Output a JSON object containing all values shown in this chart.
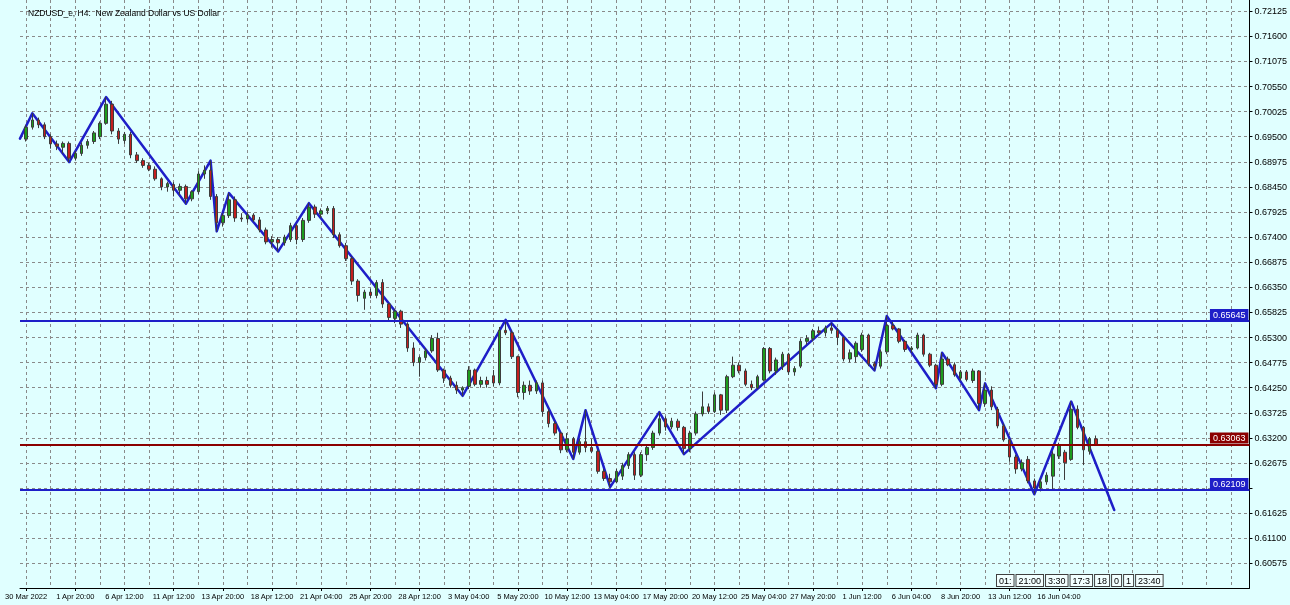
{
  "chart_data": {
    "type": "candlestick",
    "title": "NZDUSD_e, H4:  New Zealand Dollar vs US Dollar",
    "categories": [
      null,
      "30 Mar 2022",
      null,
      null,
      null,
      null,
      null,
      null,
      null,
      "1 Apr 20:00",
      null,
      null,
      null,
      null,
      null,
      null,
      null,
      "6 Apr 12:00",
      null,
      null,
      null,
      null,
      null,
      null,
      null,
      "11 Apr 12:00",
      null,
      null,
      null,
      null,
      null,
      null,
      null,
      "13 Apr 20:00",
      null,
      null,
      null,
      null,
      null,
      null,
      null,
      "18 Apr 12:00",
      null,
      null,
      null,
      null,
      null,
      null,
      null,
      "21 Apr 04:00",
      null,
      null,
      null,
      null,
      null,
      null,
      null,
      "25 Apr 20:00",
      null,
      null,
      null,
      null,
      null,
      null,
      null,
      "28 Apr 12:00",
      null,
      null,
      null,
      null,
      null,
      null,
      null,
      "3 May 04:00",
      null,
      null,
      null,
      null,
      null,
      null,
      null,
      "5 May 20:00",
      null,
      null,
      null,
      null,
      null,
      null,
      null,
      "10 May 12:00",
      null,
      null,
      null,
      null,
      null,
      null,
      null,
      "13 May 04:00",
      null,
      null,
      null,
      null,
      null,
      null,
      null,
      "17 May 20:00",
      null,
      null,
      null,
      null,
      null,
      null,
      null,
      "20 May 12:00",
      null,
      null,
      null,
      null,
      null,
      null,
      null,
      "25 May 04:00",
      null,
      null,
      null,
      null,
      null,
      null,
      null,
      "27 May 20:00",
      null,
      null,
      null,
      null,
      null,
      null,
      null,
      "1 Jun 12:00",
      null,
      null,
      null,
      null,
      null,
      null,
      null,
      "6 Jun 04:00",
      null,
      null,
      null,
      null,
      null,
      null,
      null,
      "8 Jun 20:00",
      null,
      null,
      null,
      null,
      null,
      null,
      null,
      "13 Jun 12:00",
      null,
      null,
      null,
      null,
      null,
      null,
      null,
      "16 Jun 04:00",
      null,
      null,
      null,
      null,
      null,
      null,
      null,
      null,
      null,
      null,
      null,
      null,
      null,
      null,
      null,
      null,
      null,
      null,
      null,
      null,
      null,
      null,
      null,
      null,
      null,
      null,
      null,
      null,
      null,
      null,
      null
    ],
    "ohlc": [
      null,
      [
        0.6945,
        0.6975,
        0.694,
        0.697
      ],
      [
        0.697,
        0.6999,
        0.6965,
        0.6985
      ],
      [
        0.6985,
        0.699,
        0.6968,
        0.6975
      ],
      [
        0.6975,
        0.698,
        0.6945,
        0.695
      ],
      [
        0.695,
        0.6955,
        0.6925,
        0.6935
      ],
      [
        0.6935,
        0.6942,
        0.6922,
        0.693
      ],
      [
        0.6928,
        0.694,
        0.6915,
        0.6936
      ],
      [
        0.6936,
        0.694,
        0.6897,
        0.6905
      ],
      [
        0.6905,
        0.692,
        0.69,
        0.6915
      ],
      [
        0.6915,
        0.6938,
        0.691,
        0.6932
      ],
      [
        0.6932,
        0.6945,
        0.6925,
        0.694
      ],
      [
        0.694,
        0.6962,
        0.6935,
        0.6958
      ],
      [
        0.695,
        0.6982,
        0.6945,
        0.6978
      ],
      [
        0.6978,
        0.7033,
        0.6975,
        0.7018
      ],
      [
        0.7018,
        0.7025,
        0.6955,
        0.6962
      ],
      [
        0.6962,
        0.6968,
        0.6935,
        0.6945
      ],
      [
        0.6942,
        0.696,
        0.6935,
        0.6955
      ],
      [
        0.6955,
        0.696,
        0.6905,
        0.6912
      ],
      [
        0.6912,
        0.6918,
        0.6895,
        0.69
      ],
      [
        0.69,
        0.6905,
        0.6885,
        0.689
      ],
      [
        0.689,
        0.6895,
        0.6878,
        0.6882
      ],
      [
        0.6882,
        0.6888,
        0.6858,
        0.6862
      ],
      [
        0.6862,
        0.6865,
        0.6838,
        0.6845
      ],
      [
        0.6845,
        0.6856,
        0.6835,
        0.6852
      ],
      [
        0.685,
        0.6855,
        0.6825,
        0.6838
      ],
      [
        0.6838,
        0.6852,
        0.6828,
        0.6846
      ],
      [
        0.6846,
        0.685,
        0.681,
        0.682
      ],
      [
        0.682,
        0.6838,
        0.6815,
        0.6835
      ],
      [
        0.6835,
        0.6878,
        0.683,
        0.6872
      ],
      [
        0.6872,
        0.689,
        0.6862,
        0.688
      ],
      [
        0.688,
        0.69,
        0.6818,
        0.6825
      ],
      [
        0.6825,
        0.683,
        0.6752,
        0.677
      ],
      [
        0.677,
        0.679,
        0.6762,
        0.6785
      ],
      [
        0.6785,
        0.6832,
        0.678,
        0.6818
      ],
      [
        0.6818,
        0.6825,
        0.6772,
        0.678
      ],
      [
        0.678,
        0.679,
        0.6772,
        0.6778
      ],
      [
        0.6778,
        0.6792,
        0.677,
        0.6786
      ],
      [
        0.6786,
        0.679,
        0.6772,
        0.6776
      ],
      [
        0.6776,
        0.6782,
        0.675,
        0.6755
      ],
      [
        0.6755,
        0.676,
        0.6725,
        0.673
      ],
      [
        0.673,
        0.6742,
        0.6718,
        0.6735
      ],
      [
        0.6735,
        0.674,
        0.671,
        0.6728
      ],
      [
        0.6728,
        0.6745,
        0.6722,
        0.674
      ],
      [
        0.6735,
        0.677,
        0.673,
        0.6764
      ],
      [
        0.6764,
        0.6768,
        0.6725,
        0.6735
      ],
      [
        0.6735,
        0.678,
        0.673,
        0.6775
      ],
      [
        0.6775,
        0.6811,
        0.677,
        0.6803
      ],
      [
        0.6803,
        0.6808,
        0.678,
        0.6788
      ],
      [
        0.6788,
        0.68,
        0.678,
        0.6795
      ],
      [
        0.6795,
        0.6805,
        0.6788,
        0.68
      ],
      [
        0.68,
        0.6805,
        0.6738,
        0.6745
      ],
      [
        0.6745,
        0.675,
        0.6718,
        0.6722
      ],
      [
        0.6722,
        0.6728,
        0.669,
        0.6695
      ],
      [
        0.6695,
        0.67,
        0.664,
        0.6648
      ],
      [
        0.6648,
        0.6652,
        0.6605,
        0.6618
      ],
      [
        0.6612,
        0.663,
        0.6588,
        0.6625
      ],
      [
        0.6625,
        0.6632,
        0.6612,
        0.6618
      ],
      [
        0.6618,
        0.665,
        0.6612,
        0.6645
      ],
      [
        0.6645,
        0.6652,
        0.6592,
        0.66
      ],
      [
        0.66,
        0.6602,
        0.6565,
        0.6572
      ],
      [
        0.657,
        0.659,
        0.656,
        0.6585
      ],
      [
        0.6585,
        0.6588,
        0.655,
        0.6558
      ],
      [
        0.6558,
        0.6562,
        0.65,
        0.6508
      ],
      [
        0.6508,
        0.652,
        0.647,
        0.6478
      ],
      [
        0.6478,
        0.6492,
        0.6448,
        0.6488
      ],
      [
        0.6488,
        0.6508,
        0.6482,
        0.6502
      ],
      [
        0.6502,
        0.6535,
        0.6498,
        0.6528
      ],
      [
        0.6528,
        0.654,
        0.6458,
        0.6462
      ],
      [
        0.6462,
        0.6465,
        0.6435,
        0.6445
      ],
      [
        0.6445,
        0.645,
        0.6425,
        0.643
      ],
      [
        0.643,
        0.6438,
        0.6412,
        0.642
      ],
      [
        0.642,
        0.6428,
        0.6408,
        0.6425
      ],
      [
        0.6428,
        0.647,
        0.6422,
        0.6462
      ],
      [
        0.6462,
        0.6465,
        0.6428,
        0.6432
      ],
      [
        0.6432,
        0.6448,
        0.6425,
        0.644
      ],
      [
        0.644,
        0.6448,
        0.6425,
        0.6432
      ],
      [
        0.645,
        0.6462,
        0.6428,
        0.6435
      ],
      [
        0.6435,
        0.6552,
        0.643,
        0.6545
      ],
      [
        0.6545,
        0.6567,
        0.6535,
        0.654
      ],
      [
        0.654,
        0.6545,
        0.6485,
        0.649
      ],
      [
        0.649,
        0.6492,
        0.6405,
        0.6415
      ],
      [
        0.6415,
        0.6438,
        0.64,
        0.643
      ],
      [
        0.643,
        0.644,
        0.641,
        0.6418
      ],
      [
        0.6418,
        0.644,
        0.6412,
        0.6435
      ],
      [
        0.6435,
        0.644,
        0.6365,
        0.6375
      ],
      [
        0.6375,
        0.638,
        0.6342,
        0.635
      ],
      [
        0.635,
        0.6355,
        0.6325,
        0.633
      ],
      [
        0.633,
        0.6332,
        0.6288,
        0.6295
      ],
      [
        0.6295,
        0.633,
        0.629,
        0.6318
      ],
      [
        0.6318,
        0.6322,
        0.6276,
        0.629
      ],
      [
        0.629,
        0.6318,
        0.6285,
        0.6312
      ],
      [
        0.6312,
        0.6378,
        0.629,
        0.63
      ],
      [
        0.63,
        0.6318,
        0.6288,
        0.6292
      ],
      [
        0.6292,
        0.6295,
        0.6245,
        0.625
      ],
      [
        0.625,
        0.6255,
        0.623,
        0.6235
      ],
      [
        0.6235,
        0.6245,
        0.6217,
        0.6228
      ],
      [
        0.6228,
        0.6255,
        0.6225,
        0.625
      ],
      [
        0.624,
        0.6268,
        0.6232,
        0.6262
      ],
      [
        0.6262,
        0.629,
        0.6255,
        0.6285
      ],
      [
        0.6285,
        0.629,
        0.6232,
        0.6242
      ],
      [
        0.6242,
        0.629,
        0.6238,
        0.6285
      ],
      [
        0.6285,
        0.6305,
        0.6272,
        0.63
      ],
      [
        0.63,
        0.6335,
        0.6295,
        0.633
      ],
      [
        0.633,
        0.6374,
        0.6325,
        0.636
      ],
      [
        0.636,
        0.6365,
        0.6335,
        0.6343
      ],
      [
        0.6343,
        0.6362,
        0.6338,
        0.6355
      ],
      [
        0.6355,
        0.636,
        0.6335,
        0.6342
      ],
      [
        0.6342,
        0.6345,
        0.6286,
        0.6298
      ],
      [
        0.6298,
        0.6335,
        0.629,
        0.633
      ],
      [
        0.633,
        0.6375,
        0.6325,
        0.637
      ],
      [
        0.637,
        0.6417,
        0.6365,
        0.6385
      ],
      [
        0.6385,
        0.6392,
        0.637,
        0.6375
      ],
      [
        0.6375,
        0.6415,
        0.6372,
        0.641
      ],
      [
        0.641,
        0.6412,
        0.6368,
        0.6378
      ],
      [
        0.6378,
        0.6452,
        0.6372,
        0.6448
      ],
      [
        0.6448,
        0.649,
        0.6445,
        0.6472
      ],
      [
        0.6472,
        0.6478,
        0.6455,
        0.646
      ],
      [
        0.646,
        0.6465,
        0.6428,
        0.6432
      ],
      [
        0.6432,
        0.644,
        0.642,
        0.6425
      ],
      [
        0.6425,
        0.6452,
        0.6422,
        0.6448
      ],
      [
        0.6441,
        0.651,
        0.6438,
        0.6507
      ],
      [
        0.6507,
        0.651,
        0.6455,
        0.646
      ],
      [
        0.646,
        0.6488,
        0.6452,
        0.6483
      ],
      [
        0.647,
        0.65,
        0.6462,
        0.6495
      ],
      [
        0.6495,
        0.6498,
        0.6452,
        0.6458
      ],
      [
        0.6458,
        0.647,
        0.645,
        0.6465
      ],
      [
        0.647,
        0.6528,
        0.6466,
        0.6522
      ],
      [
        0.6522,
        0.6535,
        0.6515,
        0.6528
      ],
      [
        0.6528,
        0.6548,
        0.6522,
        0.6544
      ],
      [
        0.6544,
        0.6553,
        0.6535,
        0.654
      ],
      [
        0.654,
        0.6555,
        0.6532,
        0.655
      ],
      [
        0.655,
        0.656,
        0.6538,
        0.6545
      ],
      [
        0.6545,
        0.655,
        0.6514,
        0.653
      ],
      [
        0.653,
        0.6532,
        0.648,
        0.6485
      ],
      [
        0.6485,
        0.6505,
        0.6478,
        0.6498
      ],
      [
        0.649,
        0.6522,
        0.6478,
        0.6518
      ],
      [
        0.6505,
        0.654,
        0.65,
        0.6535
      ],
      [
        0.6535,
        0.6538,
        0.647,
        0.6475
      ],
      [
        0.6475,
        0.648,
        0.6461,
        0.647
      ],
      [
        0.647,
        0.6505,
        0.6465,
        0.65
      ],
      [
        0.65,
        0.6575,
        0.6495,
        0.6555
      ],
      [
        0.6555,
        0.6565,
        0.6545,
        0.6548
      ],
      [
        0.6548,
        0.655,
        0.6518,
        0.6522
      ],
      [
        0.6522,
        0.6525,
        0.65,
        0.6505
      ],
      [
        0.6505,
        0.6512,
        0.6498,
        0.6508
      ],
      [
        0.6508,
        0.654,
        0.6505,
        0.6535
      ],
      [
        0.6535,
        0.6538,
        0.649,
        0.6495
      ],
      [
        0.6495,
        0.6498,
        0.6468,
        0.6472
      ],
      [
        0.6472,
        0.6475,
        0.6424,
        0.6432
      ],
      [
        0.6432,
        0.6498,
        0.6428,
        0.6485
      ],
      [
        0.6485,
        0.649,
        0.647,
        0.6473
      ],
      [
        0.6473,
        0.6478,
        0.6448,
        0.6452
      ],
      [
        0.6445,
        0.6462,
        0.644,
        0.6458
      ],
      [
        0.6458,
        0.6462,
        0.6438,
        0.6442
      ],
      [
        0.644,
        0.6465,
        0.6435,
        0.646
      ],
      [
        0.646,
        0.6462,
        0.6378,
        0.6392
      ],
      [
        0.6392,
        0.6434,
        0.6385,
        0.642
      ],
      [
        0.642,
        0.6428,
        0.6378,
        0.6385
      ],
      [
        0.638,
        0.6385,
        0.634,
        0.6345
      ],
      [
        0.6345,
        0.635,
        0.6312,
        0.6316
      ],
      [
        0.6316,
        0.6318,
        0.627,
        0.628
      ],
      [
        0.628,
        0.6285,
        0.6245,
        0.6255
      ],
      [
        0.6255,
        0.6275,
        0.625,
        0.6268
      ],
      [
        0.6275,
        0.6282,
        0.6225,
        0.623
      ],
      [
        0.623,
        0.6235,
        0.6202,
        0.6215
      ],
      [
        0.6215,
        0.6235,
        0.6208,
        0.6228
      ],
      [
        0.6228,
        0.6248,
        0.6222,
        0.6242
      ],
      [
        0.624,
        0.6292,
        0.621,
        0.6286
      ],
      [
        0.6282,
        0.631,
        0.6276,
        0.6304
      ],
      [
        0.629,
        0.6295,
        0.6232,
        0.6268
      ],
      [
        0.6275,
        0.6396,
        0.6272,
        0.638
      ],
      [
        0.638,
        0.6388,
        0.6338,
        0.6342
      ],
      [
        0.6342,
        0.6345,
        0.6263,
        0.6295
      ],
      [
        0.6292,
        0.6322,
        0.6285,
        0.6318
      ],
      [
        0.6318,
        0.6325,
        0.6303,
        0.6306
      ],
      null,
      null,
      null,
      null,
      null,
      null,
      null,
      null,
      null,
      null,
      null,
      null,
      null,
      null,
      null,
      null,
      null,
      null,
      null,
      null,
      null,
      null,
      null,
      null,
      null
    ],
    "series": [
      {
        "type": "line",
        "color": "#1e1ec8",
        "values": [
          0.6946,
          null,
          0.6999,
          null,
          null,
          null,
          null,
          null,
          0.6897,
          null,
          null,
          null,
          null,
          null,
          0.7033,
          null,
          null,
          null,
          null,
          null,
          null,
          null,
          null,
          null,
          null,
          null,
          null,
          0.681,
          null,
          null,
          null,
          0.69,
          0.6752,
          null,
          0.6832,
          null,
          null,
          null,
          null,
          null,
          null,
          null,
          0.671,
          null,
          null,
          null,
          null,
          0.6811,
          null,
          null,
          null,
          null,
          null,
          null,
          null,
          null,
          null,
          null,
          null,
          null,
          null,
          null,
          null,
          null,
          null,
          null,
          null,
          null,
          null,
          null,
          null,
          null,
          0.6408,
          null,
          null,
          null,
          null,
          null,
          null,
          0.6567,
          null,
          null,
          null,
          null,
          null,
          null,
          null,
          null,
          null,
          null,
          0.6276,
          null,
          0.6378,
          null,
          null,
          null,
          0.6217,
          null,
          null,
          null,
          null,
          null,
          null,
          null,
          0.6374,
          null,
          null,
          null,
          0.6286,
          null,
          null,
          null,
          null,
          null,
          null,
          null,
          null,
          null,
          null,
          null,
          null,
          null,
          null,
          null,
          null,
          null,
          null,
          null,
          null,
          null,
          null,
          null,
          0.656,
          null,
          null,
          null,
          null,
          null,
          null,
          0.6461,
          null,
          0.6575,
          null,
          null,
          null,
          null,
          null,
          null,
          null,
          0.6424,
          0.6498,
          null,
          null,
          null,
          null,
          null,
          0.6378,
          0.6434,
          null,
          null,
          null,
          null,
          null,
          null,
          null,
          0.6202,
          null,
          null,
          null,
          null,
          null,
          0.6396,
          null,
          null,
          null,
          null,
          null,
          null,
          0.6169,
          null,
          null,
          null,
          null,
          null,
          null,
          null,
          null,
          null,
          null,
          null,
          null,
          null,
          null,
          null,
          null,
          null,
          null,
          null,
          null,
          null,
          null
        ]
      }
    ],
    "ylim": [
      0.6006,
      0.7236
    ],
    "yticks": [
      0.60575,
      {
        "value": 0.611,
        "label": "0.61100"
      },
      0.61625,
      {
        "value": 0.6215,
        "label": null
      },
      0.62675,
      {
        "value": 0.632,
        "label": "0.63200"
      },
      0.63725,
      {
        "value": 0.6425,
        "label": "0.64250"
      },
      0.64775,
      {
        "value": 0.653,
        "label": "0.65300"
      },
      0.65825,
      {
        "value": 0.6635,
        "label": "0.66350"
      },
      0.66875,
      {
        "value": 0.674,
        "label": "0.67400"
      },
      0.67925,
      {
        "value": 0.6845,
        "label": "0.68450"
      },
      0.68975,
      {
        "value": 0.695,
        "label": "0.69500"
      },
      0.70025,
      {
        "value": 0.7055,
        "label": "0.70550"
      },
      0.71075,
      {
        "value": 0.716,
        "label": "0.71600"
      },
      0.72125
    ],
    "ref_lines": [
      {
        "axis": "y",
        "value": 0.65645,
        "label": "0.65645",
        "color": "#1e1ec8"
      },
      {
        "axis": "y",
        "value": 0.63063,
        "label": "0.63063",
        "color": "#8b0000"
      },
      {
        "axis": "y",
        "value": 0.62109,
        "label": "0.62109",
        "color": "#1e1ec8"
      }
    ],
    "annotations": [
      "01:",
      "21:00",
      "3:30",
      "17:3",
      "18",
      "0",
      "1",
      "23:40"
    ],
    "grid": true
  }
}
